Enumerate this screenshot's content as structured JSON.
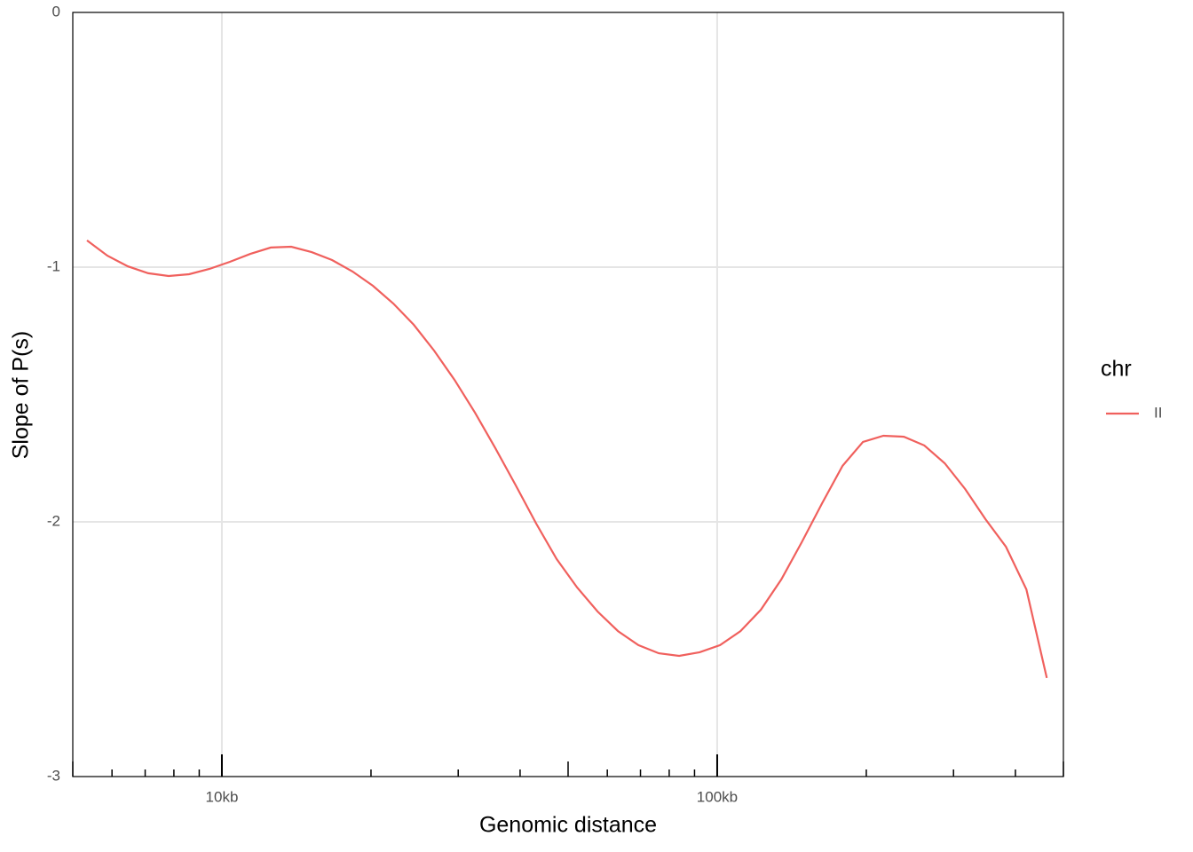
{
  "chart_data": {
    "type": "line",
    "x_label": "Genomic distance",
    "y_label": "Slope of P(s)",
    "x_scale": "log",
    "xlim": [
      5000,
      500000
    ],
    "xticks": [
      {
        "value": 10000,
        "label": "10kb"
      },
      {
        "value": 100000,
        "label": "100kb"
      }
    ],
    "xminorticks": [
      5000,
      6000,
      7000,
      8000,
      9000,
      20000,
      30000,
      40000,
      50000,
      60000,
      70000,
      80000,
      90000,
      200000,
      300000,
      400000,
      500000
    ],
    "ylim": [
      -3,
      0
    ],
    "yticks": [
      0,
      -1,
      -2,
      -3
    ],
    "grid": true,
    "legend_title": "chr",
    "series": [
      {
        "name": "II",
        "color": "#f0605d",
        "x": [
          5341,
          5873,
          6458,
          7101,
          7808,
          8586,
          9441,
          10381,
          11415,
          12552,
          13802,
          15177,
          16688,
          18350,
          20177,
          22187,
          24396,
          26826,
          29497,
          32435,
          35665,
          39217,
          43122,
          47417,
          52139,
          57331,
          63041,
          69319,
          76222,
          83813,
          92160,
          101338,
          111430,
          122527,
          134729,
          148146,
          162900,
          179123,
          196961,
          216576,
          238144,
          261860,
          287938,
          316613,
          348144,
          382815,
          420938,
          462858
        ],
        "values": [
          -0.895,
          -0.955,
          -0.997,
          -1.024,
          -1.035,
          -1.028,
          -1.007,
          -0.979,
          -0.948,
          -0.923,
          -0.92,
          -0.941,
          -0.972,
          -1.017,
          -1.073,
          -1.143,
          -1.226,
          -1.328,
          -1.443,
          -1.571,
          -1.711,
          -1.857,
          -2.007,
          -2.146,
          -2.258,
          -2.352,
          -2.429,
          -2.484,
          -2.516,
          -2.526,
          -2.512,
          -2.484,
          -2.429,
          -2.345,
          -2.226,
          -2.08,
          -1.927,
          -1.78,
          -1.686,
          -1.662,
          -1.666,
          -1.7,
          -1.77,
          -1.871,
          -1.99,
          -2.098,
          -2.265,
          -2.613
        ]
      }
    ]
  }
}
